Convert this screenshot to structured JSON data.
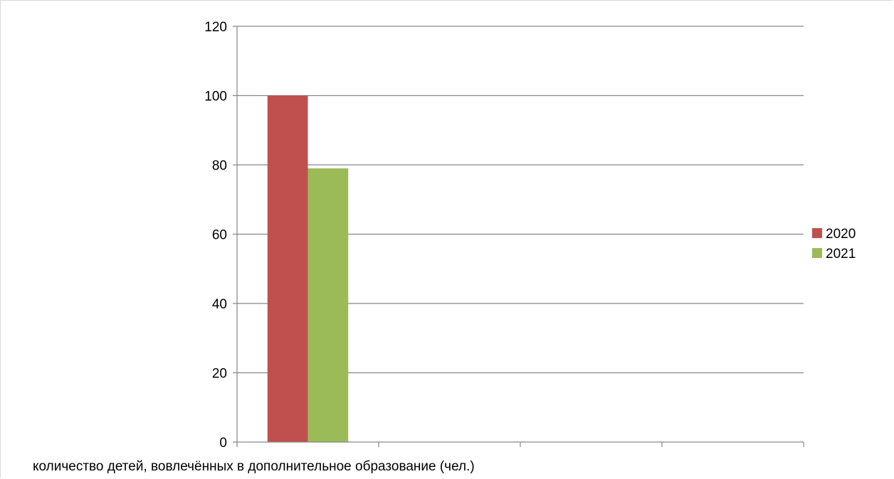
{
  "chart_data": {
    "type": "bar",
    "categories": [
      "количество детей, вовлечённых в дополнительное образование (чел.)",
      "",
      "",
      ""
    ],
    "series": [
      {
        "name": "2020",
        "values": [
          100,
          null,
          null,
          null
        ],
        "color": "#c0504d"
      },
      {
        "name": "2021",
        "values": [
          79,
          null,
          null,
          null
        ],
        "color": "#9bbb59"
      }
    ],
    "ylim": [
      0,
      120
    ],
    "yticks": [
      "0",
      "20",
      "40",
      "60",
      "80",
      "100",
      "120"
    ],
    "grid": true,
    "legend_position": "right",
    "axis_color": "#868686",
    "grid_color": "#868686"
  }
}
